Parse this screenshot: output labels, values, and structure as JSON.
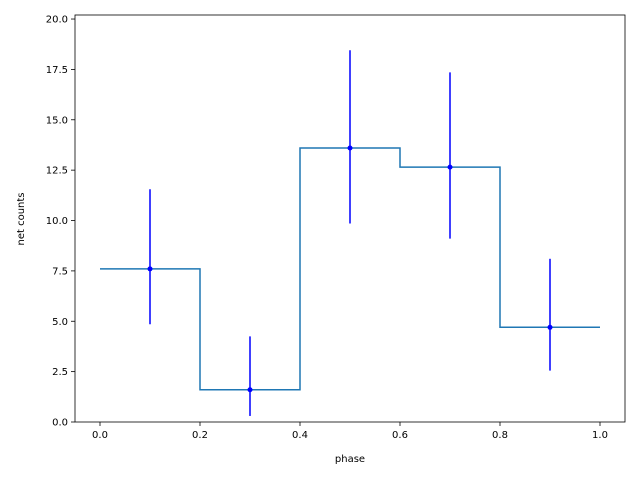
{
  "chart_data": {
    "type": "step-errorbar",
    "xlabel": "phase",
    "ylabel": "net counts",
    "xlim": [
      -0.05,
      1.05
    ],
    "ylim": [
      0.0,
      20.2
    ],
    "x_ticks": [
      0.0,
      0.2,
      0.4,
      0.6,
      0.8,
      1.0
    ],
    "x_tick_labels": [
      "0.0",
      "0.2",
      "0.4",
      "0.6",
      "0.8",
      "1.0"
    ],
    "y_ticks": [
      0.0,
      2.5,
      5.0,
      7.5,
      10.0,
      12.5,
      15.0,
      17.5,
      20.0
    ],
    "y_tick_labels": [
      "0.0",
      "2.5",
      "5.0",
      "7.5",
      "10.0",
      "12.5",
      "15.0",
      "17.5",
      "20.0"
    ],
    "bin_edges": [
      0.0,
      0.2,
      0.4,
      0.6,
      0.8,
      1.0
    ],
    "bin_centers": [
      0.1,
      0.3,
      0.5,
      0.7,
      0.9
    ],
    "values": [
      7.6,
      1.6,
      13.6,
      12.65,
      4.7
    ],
    "err_low": [
      4.85,
      0.3,
      9.85,
      9.1,
      2.55
    ],
    "err_high": [
      11.55,
      4.25,
      18.45,
      17.35,
      8.1
    ],
    "colors": {
      "step": "#1f77b4",
      "errorbar": "#0000ff",
      "marker": "#0000ff"
    }
  }
}
